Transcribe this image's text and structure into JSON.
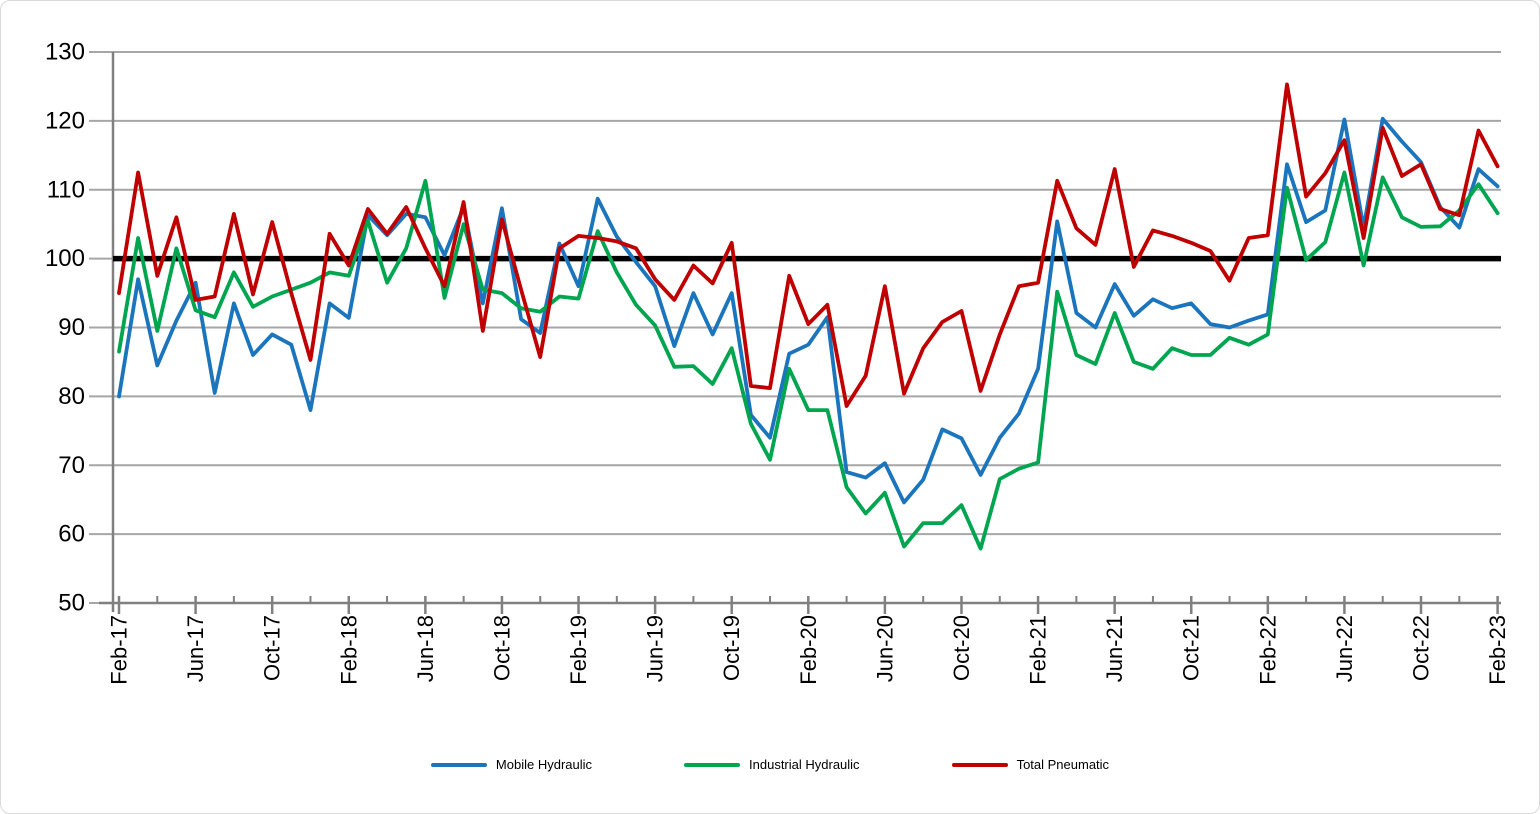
{
  "chart_data": {
    "type": "line",
    "title": "",
    "grid": true,
    "legend_position": "bottom",
    "ylim": [
      50,
      130
    ],
    "y_ticks": [
      130,
      120,
      110,
      100,
      90,
      80,
      70,
      60,
      50
    ],
    "reference_line": {
      "value": 100,
      "color": "#000000"
    },
    "x_tick_labels": [
      "Feb-17",
      "Jun-17",
      "Oct-17",
      "Feb-18",
      "Jun-18",
      "Oct-18",
      "Feb-19",
      "Jun-19",
      "Oct-19",
      "Feb-20",
      "Jun-20",
      "Oct-20",
      "Feb-21",
      "Jun-21",
      "Oct-21",
      "Feb-22",
      "Jun-22",
      "Oct-22",
      "Feb-23"
    ],
    "months": [
      "Feb-17",
      "Mar-17",
      "Apr-17",
      "May-17",
      "Jun-17",
      "Jul-17",
      "Aug-17",
      "Sep-17",
      "Oct-17",
      "Nov-17",
      "Dec-17",
      "Jan-18",
      "Feb-18",
      "Mar-18",
      "Apr-18",
      "May-18",
      "Jun-18",
      "Jul-18",
      "Aug-18",
      "Sep-18",
      "Oct-18",
      "Nov-18",
      "Dec-18",
      "Jan-19",
      "Feb-19",
      "Mar-19",
      "Apr-19",
      "May-19",
      "Jun-19",
      "Jul-19",
      "Aug-19",
      "Sep-19",
      "Oct-19",
      "Nov-19",
      "Dec-19",
      "Jan-20",
      "Feb-20",
      "Mar-20",
      "Apr-20",
      "May-20",
      "Jun-20",
      "Jul-20",
      "Aug-20",
      "Sep-20",
      "Oct-20",
      "Nov-20",
      "Dec-20",
      "Jan-21",
      "Feb-21",
      "Mar-21",
      "Apr-21",
      "May-21",
      "Jun-21",
      "Jul-21",
      "Aug-21",
      "Sep-21",
      "Oct-21",
      "Nov-21",
      "Dec-21",
      "Jan-22",
      "Feb-22",
      "Mar-22",
      "Apr-22",
      "May-22",
      "Jun-22",
      "Jul-22",
      "Aug-22",
      "Sep-22",
      "Oct-22",
      "Nov-22",
      "Dec-22",
      "Jan-23",
      "Feb-23"
    ],
    "series": [
      {
        "name": "Mobile Hydraulic",
        "color": "#1B75BD",
        "values": [
          80,
          97,
          84.5,
          91,
          96.5,
          80.5,
          93.5,
          86,
          89,
          87.5,
          78,
          93.5,
          91.4,
          106.3,
          103.4,
          106.5,
          106,
          100.5,
          107.5,
          93.5,
          107.3,
          91.2,
          89.2,
          102.2,
          96,
          108.7,
          103.2,
          99.5,
          96,
          87.3,
          95,
          89,
          95,
          77.3,
          74,
          86.2,
          87.5,
          91.5,
          69,
          68.2,
          70.3,
          64.6,
          67.9,
          75.2,
          73.9,
          68.6,
          74,
          77.5,
          84,
          105.4,
          92.1,
          90,
          96.3,
          91.7,
          94.1,
          92.8,
          93.5,
          90.5,
          90,
          91,
          91.9,
          113.7,
          105.3,
          107,
          120.2,
          104.5,
          120.3,
          117,
          114,
          107.5,
          104.5,
          113,
          110.5
        ]
      },
      {
        "name": "Industrial Hydraulic",
        "color": "#00A550",
        "values": [
          86.5,
          103,
          89.5,
          101.5,
          92.5,
          91.5,
          98,
          93,
          94.5,
          95.5,
          96.5,
          98,
          97.5,
          105.5,
          96.5,
          101.5,
          111.3,
          94.3,
          105,
          95.5,
          95,
          92.8,
          92.3,
          94.5,
          94.2,
          104,
          98,
          93.3,
          90.3,
          84.3,
          84.4,
          81.8,
          87,
          76,
          70.8,
          84,
          78,
          78,
          66.8,
          63,
          66,
          58.2,
          61.6,
          61.6,
          64.2,
          57.9,
          68,
          69.5,
          70.4,
          95.2,
          86,
          84.7,
          92.1,
          85,
          84,
          87,
          86,
          86,
          88.5,
          87.5,
          89,
          110.3,
          99.8,
          102.4,
          112.5,
          99,
          111.8,
          106,
          104.6,
          104.7,
          107,
          110.8,
          106.6
        ]
      },
      {
        "name": "Total Pneumatic",
        "color": "#C00000",
        "values": [
          95,
          112.5,
          97.5,
          106,
          94,
          94.5,
          106.5,
          94.8,
          105.3,
          95,
          85.3,
          103.6,
          99,
          107.2,
          103.6,
          107.5,
          101.5,
          96,
          108.2,
          89.5,
          105.7,
          95.5,
          85.7,
          101.5,
          103.3,
          103,
          102.5,
          101.5,
          97,
          94,
          99,
          96.4,
          102.3,
          81.5,
          81.2,
          97.5,
          90.5,
          93.3,
          78.6,
          83,
          96,
          80.4,
          87,
          90.8,
          92.4,
          80.8,
          89,
          96,
          96.5,
          111.3,
          104.4,
          102,
          113,
          98.8,
          104.1,
          103.3,
          102.3,
          101.1,
          96.8,
          103,
          103.4,
          125.3,
          109,
          112.4,
          117.2,
          103,
          119,
          112,
          113.7,
          107.2,
          106.3,
          118.6,
          113.4
        ]
      }
    ],
    "axis_color": "#808080",
    "gridline_color": "#A6A6A6"
  }
}
